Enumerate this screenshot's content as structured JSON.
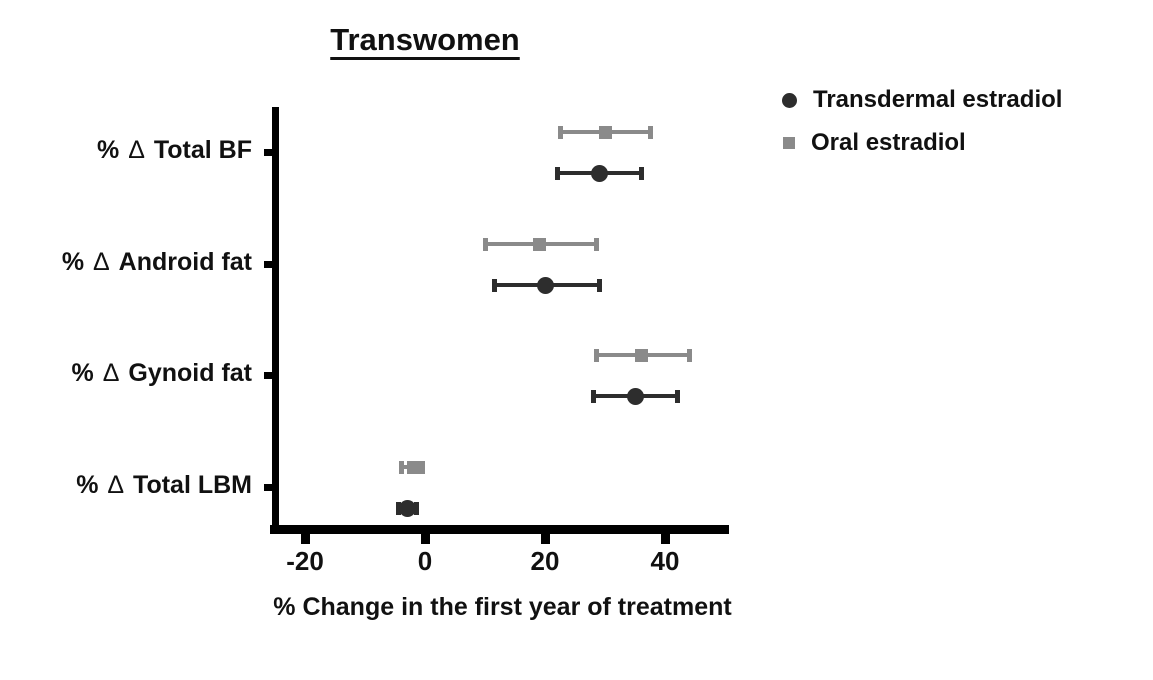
{
  "chart_data": {
    "type": "scatter",
    "variant": "horizontal-dot-plot-with-error-bars",
    "title": "Transwomen",
    "xlabel": "% Change in the first year of treatment",
    "categories": [
      "% Δ Total BF",
      "% Δ Android fat",
      "% Δ Gynoid fat",
      "% Δ Total LBM"
    ],
    "x_ticks": [
      -20,
      0,
      20,
      40
    ],
    "xlim": [
      -26,
      51
    ],
    "grid": false,
    "legend_position": "top-right",
    "series": [
      {
        "name": "Transdermal estradiol",
        "marker": "circle",
        "color": "#2d2d2d",
        "values": [
          29,
          20,
          35,
          -3
        ],
        "ci_low": [
          22,
          11.5,
          28,
          -4.5
        ],
        "ci_high": [
          36,
          29,
          42,
          -1.5
        ]
      },
      {
        "name": "Oral estradiol",
        "marker": "square",
        "color": "#8a8a8a",
        "values": [
          30,
          19,
          36,
          -2
        ],
        "ci_low": [
          22.5,
          10,
          28.5,
          -4
        ],
        "ci_high": [
          37.5,
          28.5,
          44,
          -0.5
        ]
      }
    ]
  },
  "colors": {
    "axis": "#000000",
    "text": "#111111",
    "background": "#ffffff"
  }
}
